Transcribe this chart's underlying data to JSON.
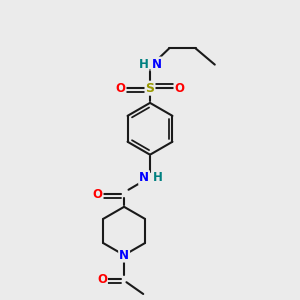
{
  "bg_color": "#ebebeb",
  "bond_color": "#1a1a1a",
  "bond_width": 1.5,
  "atom_colors": {
    "N": "#0000ff",
    "O": "#ff0000",
    "S": "#999900",
    "H": "#008080",
    "C": "#1a1a1a"
  },
  "font_size": 8.5,
  "fig_width": 3.0,
  "fig_height": 3.0,
  "dpi": 100
}
